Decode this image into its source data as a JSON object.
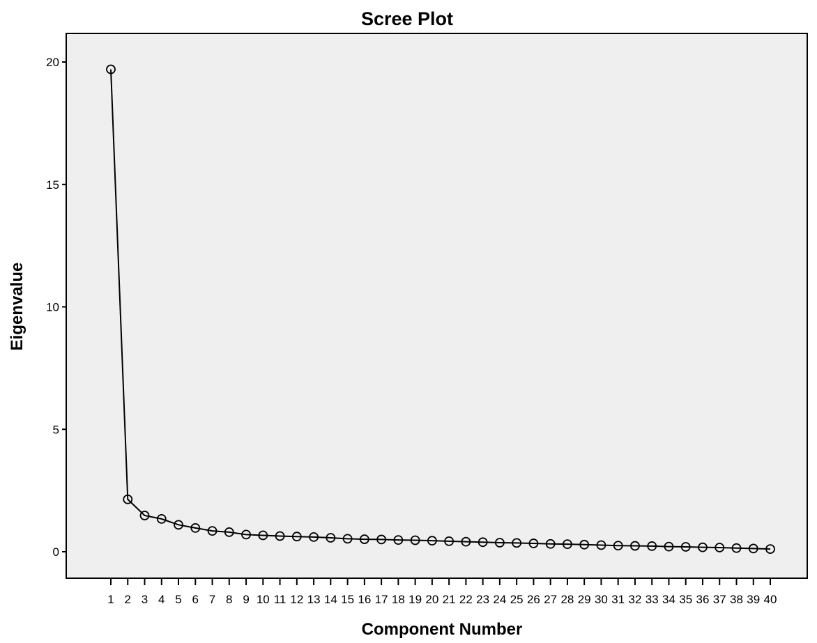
{
  "chart_data": {
    "type": "line",
    "title": "Scree Plot",
    "xlabel": "Component Number",
    "ylabel": "Eigenvalue",
    "x": [
      1,
      2,
      3,
      4,
      5,
      6,
      7,
      8,
      9,
      10,
      11,
      12,
      13,
      14,
      15,
      16,
      17,
      18,
      19,
      20,
      21,
      22,
      23,
      24,
      25,
      26,
      27,
      28,
      29,
      30,
      31,
      32,
      33,
      34,
      35,
      36,
      37,
      38,
      39,
      40
    ],
    "x_tick_labels": [
      "1",
      "2",
      "3",
      "4",
      "5",
      "6",
      "7",
      "8",
      "9",
      "10",
      "11",
      "12",
      "13",
      "14",
      "15",
      "16",
      "17",
      "18",
      "19",
      "20",
      "21",
      "22",
      "23",
      "24",
      "25",
      "26",
      "27",
      "28",
      "29",
      "30",
      "31",
      "32",
      "33",
      "34",
      "35",
      "36",
      "37",
      "38",
      "39",
      "40"
    ],
    "series": [
      {
        "values": [
          19.7,
          2.14,
          1.48,
          1.34,
          1.1,
          0.97,
          0.85,
          0.8,
          0.7,
          0.67,
          0.64,
          0.62,
          0.6,
          0.57,
          0.53,
          0.51,
          0.5,
          0.48,
          0.47,
          0.45,
          0.43,
          0.41,
          0.39,
          0.37,
          0.36,
          0.34,
          0.32,
          0.31,
          0.29,
          0.27,
          0.25,
          0.24,
          0.23,
          0.21,
          0.2,
          0.18,
          0.17,
          0.15,
          0.13,
          0.11
        ]
      }
    ],
    "y_ticks": [
      0,
      5,
      10,
      15,
      20
    ],
    "ylim": [
      -1.0,
      21.3
    ],
    "xlim": [
      0,
      41
    ],
    "grid": false,
    "legend": "none",
    "colors": {
      "plot_background": "#efefef",
      "line": "#000000",
      "marker_edge": "#000000"
    },
    "marker": "open-circle"
  }
}
